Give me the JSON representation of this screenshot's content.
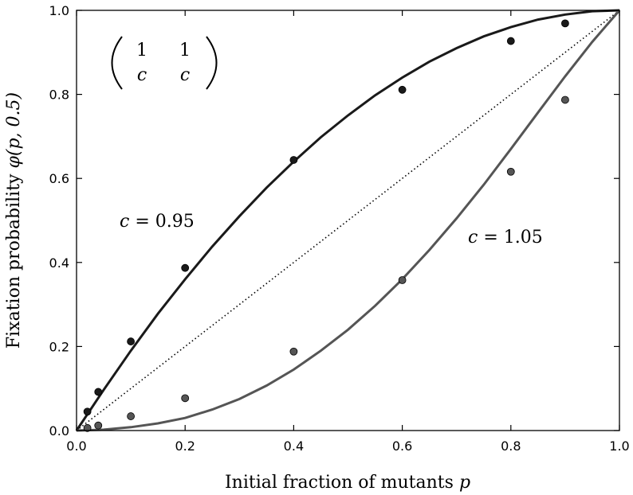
{
  "chart_data": {
    "type": "line",
    "xlabel": "Initial fraction of mutants",
    "xlabel_var": "p",
    "ylabel": "Fixation probability",
    "ylabel_func": "φ(p, 0.5)",
    "xlim": [
      0.0,
      1.0
    ],
    "ylim": [
      0.0,
      1.0
    ],
    "x_ticks": [
      "0.0",
      "0.2",
      "0.4",
      "0.6",
      "0.8",
      "1.0"
    ],
    "y_ticks": [
      "0.0",
      "0.2",
      "0.4",
      "0.6",
      "0.8",
      "1.0"
    ],
    "grid": false,
    "matrix": {
      "row1": [
        "1",
        "1"
      ],
      "row2": [
        "c",
        "c"
      ]
    },
    "series": [
      {
        "name": "c = 0.95",
        "label_value": "0.95",
        "color": "#1a1a1a",
        "curve_x": [
          0,
          0.05,
          0.1,
          0.15,
          0.2,
          0.25,
          0.3,
          0.35,
          0.4,
          0.45,
          0.5,
          0.55,
          0.6,
          0.65,
          0.7,
          0.75,
          0.8,
          0.85,
          0.9,
          0.95,
          1.0
        ],
        "curve_y": [
          0,
          0.097,
          0.19,
          0.278,
          0.36,
          0.438,
          0.51,
          0.578,
          0.64,
          0.698,
          0.75,
          0.798,
          0.84,
          0.878,
          0.91,
          0.938,
          0.96,
          0.978,
          0.99,
          0.998,
          1.0
        ],
        "points_x": [
          0.02,
          0.04,
          0.1,
          0.2,
          0.4,
          0.6,
          0.8,
          0.9
        ],
        "points_y": [
          0.045,
          0.092,
          0.212,
          0.387,
          0.644,
          0.811,
          0.927,
          0.969
        ]
      },
      {
        "name": "c = 1.05",
        "label_value": "1.05",
        "color": "#555555",
        "curve_x": [
          0,
          0.05,
          0.1,
          0.15,
          0.2,
          0.25,
          0.3,
          0.35,
          0.4,
          0.45,
          0.5,
          0.55,
          0.6,
          0.65,
          0.7,
          0.75,
          0.8,
          0.85,
          0.9,
          0.95,
          1.0
        ],
        "curve_y": [
          0,
          0.002,
          0.008,
          0.017,
          0.03,
          0.05,
          0.075,
          0.107,
          0.145,
          0.19,
          0.24,
          0.297,
          0.36,
          0.43,
          0.505,
          0.585,
          0.67,
          0.757,
          0.843,
          0.925,
          1.0
        ],
        "points_x": [
          0.02,
          0.04,
          0.1,
          0.2,
          0.4,
          0.6,
          0.8,
          0.9
        ],
        "points_y": [
          0.006,
          0.012,
          0.034,
          0.077,
          0.188,
          0.358,
          0.616,
          0.787
        ]
      }
    ],
    "reference_line": {
      "x": [
        0,
        1
      ],
      "y": [
        0,
        1
      ],
      "style": "dotted",
      "color": "#000000"
    }
  }
}
